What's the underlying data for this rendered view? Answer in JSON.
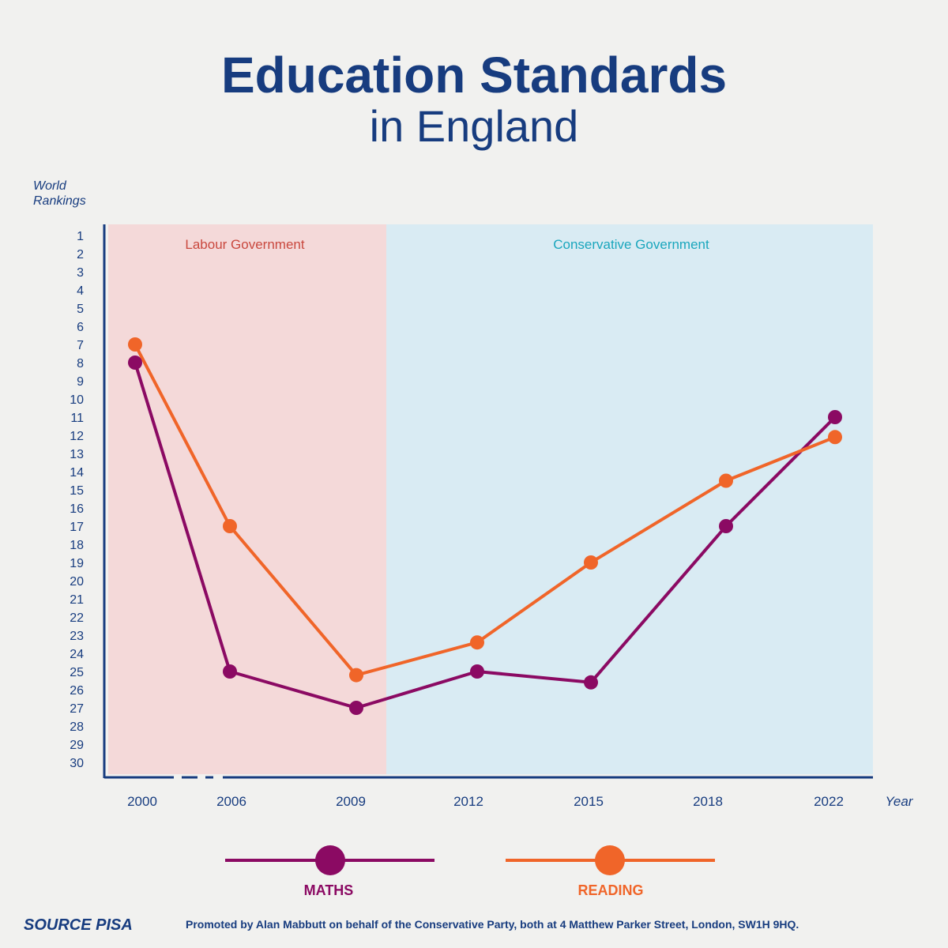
{
  "title": {
    "line1": "Education Standards",
    "line2": "in England"
  },
  "chart_data": {
    "type": "line",
    "ylabel": "World Rankings",
    "xlabel": "Year",
    "ylim": [
      1,
      30
    ],
    "y_inverted": true,
    "categories": [
      "2000",
      "2006",
      "2009",
      "2012",
      "2015",
      "2018",
      "2022"
    ],
    "series": [
      {
        "name": "MATHS",
        "color": "#8b0a63",
        "values": [
          8,
          25,
          27,
          25,
          25.6,
          17,
          11
        ]
      },
      {
        "name": "READING",
        "color": "#f06529",
        "values": [
          7,
          17,
          25.2,
          23.4,
          19,
          14.5,
          12.1
        ]
      }
    ],
    "regions": [
      {
        "label": "Labour Government",
        "color": "#f4d9d9",
        "text_color": "#c9483e"
      },
      {
        "label": "Conservative Government",
        "color": "#d9ebf3",
        "text_color": "#1aa6bd"
      }
    ],
    "legend_placement": "bottom",
    "axis_break_between": [
      "2000",
      "2006"
    ]
  },
  "footer": {
    "source": "SOURCE PISA",
    "promoted": "Promoted by Alan Mabbutt on behalf of the Conservative Party, both at 4 Matthew Parker Street, London, SW1H 9HQ."
  }
}
